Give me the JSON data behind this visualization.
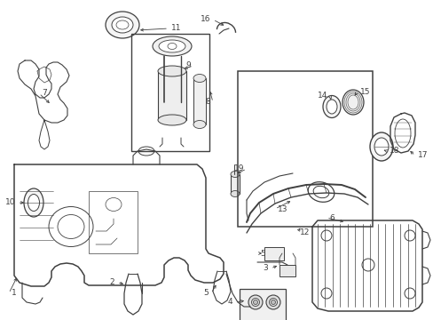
{
  "bg_color": "#ffffff",
  "line_color": "#404040",
  "label_color": "#000000",
  "figsize": [
    4.89,
    3.6
  ],
  "dpi": 100,
  "lw_main": 0.9,
  "lw_thin": 0.5,
  "font_size": 6.5
}
